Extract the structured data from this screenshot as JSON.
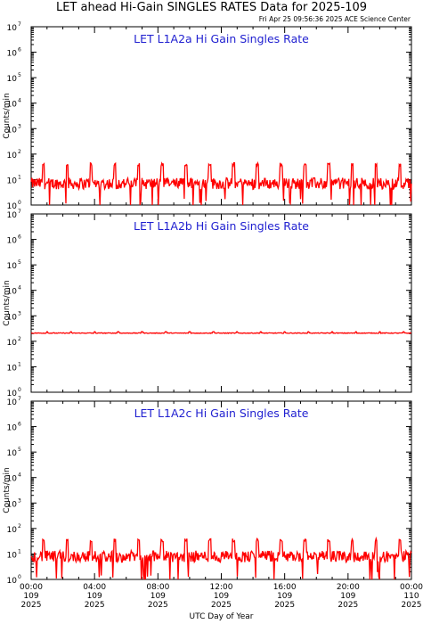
{
  "header": {
    "title": "LET ahead Hi-Gain SINGLES RATES Data for 2025-109",
    "timestamp": "Fri Apr 25 09:56:36 2025 ACE Science Center"
  },
  "chart_data": [
    {
      "type": "line",
      "title": "LET L1A2a Hi Gain Singles Rate",
      "ylabel": "Counts/min",
      "yscale": "log",
      "ylim": [
        1,
        10000000
      ],
      "xlim": [
        "2025-109 00:00",
        "2025-110 00:00"
      ],
      "color": "#ff0000",
      "series": [
        {
          "baseline": 7,
          "range": [
            1,
            50
          ],
          "spike_peak": 40,
          "spike_period_hours": 1.5
        }
      ]
    },
    {
      "type": "line",
      "title": "LET L1A2b Hi Gain Singles Rate",
      "ylabel": "Counts/min",
      "yscale": "log",
      "ylim": [
        1,
        10000000
      ],
      "xlim": [
        "2025-109 00:00",
        "2025-110 00:00"
      ],
      "color": "#ff0000",
      "series": [
        {
          "baseline": 210,
          "range": [
            190,
            240
          ],
          "spike_peak": 240,
          "spike_period_hours": 1.5
        }
      ]
    },
    {
      "type": "line",
      "title": "LET L1A2c Hi Gain Singles Rate",
      "ylabel": "Counts/min",
      "yscale": "log",
      "ylim": [
        1,
        10000000
      ],
      "xlim": [
        "2025-109 00:00",
        "2025-110 00:00"
      ],
      "color": "#ff0000",
      "series": [
        {
          "baseline": 8,
          "range": [
            1,
            45
          ],
          "spike_peak": 35,
          "spike_period_hours": 1.5
        }
      ]
    }
  ],
  "axes": {
    "ytick_base": "10",
    "ytick_exponents": [
      "0",
      "1",
      "2",
      "3",
      "4",
      "5",
      "6",
      "7"
    ],
    "xticks": [
      {
        "time": "00:00",
        "day": "109",
        "year": "2025"
      },
      {
        "time": "04:00",
        "day": "109",
        "year": "2025"
      },
      {
        "time": "08:00",
        "day": "109",
        "year": "2025"
      },
      {
        "time": "12:00",
        "day": "109",
        "year": "2025"
      },
      {
        "time": "16:00",
        "day": "109",
        "year": "2025"
      },
      {
        "time": "20:00",
        "day": "109",
        "year": "2025"
      },
      {
        "time": "00:00",
        "day": "110",
        "year": "2025"
      }
    ],
    "xlabel": "UTC Day of Year"
  }
}
